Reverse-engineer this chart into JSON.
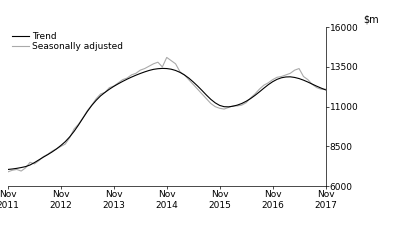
{
  "yticks": [
    6000,
    8500,
    11000,
    13500,
    16000
  ],
  "ylim": [
    6000,
    16000
  ],
  "xtick_labels": [
    "Nov\n2011",
    "Nov\n2012",
    "Nov\n2013",
    "Nov\n2014",
    "Nov\n2015",
    "Nov\n2016",
    "Nov\n2017"
  ],
  "xtick_positions": [
    0,
    12,
    24,
    36,
    48,
    60,
    72
  ],
  "trend": [
    7050,
    7080,
    7120,
    7170,
    7230,
    7330,
    7480,
    7650,
    7820,
    7980,
    8150,
    8340,
    8560,
    8800,
    9100,
    9450,
    9850,
    10280,
    10700,
    11080,
    11400,
    11680,
    11900,
    12100,
    12280,
    12440,
    12590,
    12730,
    12860,
    12980,
    13090,
    13190,
    13280,
    13350,
    13390,
    13410,
    13400,
    13360,
    13280,
    13160,
    13000,
    12800,
    12560,
    12300,
    12020,
    11730,
    11460,
    11240,
    11080,
    11000,
    10990,
    11030,
    11100,
    11200,
    11340,
    11510,
    11710,
    11930,
    12160,
    12380,
    12570,
    12720,
    12820,
    12870,
    12880,
    12840,
    12770,
    12670,
    12550,
    12420,
    12290,
    12170,
    12060
  ],
  "seasonal": [
    6900,
    7000,
    7050,
    6950,
    7150,
    7500,
    7400,
    7600,
    7850,
    8000,
    8200,
    8350,
    8500,
    8650,
    9050,
    9600,
    9900,
    10300,
    10750,
    11100,
    11500,
    11800,
    11900,
    12200,
    12300,
    12500,
    12700,
    12800,
    13000,
    13100,
    13300,
    13400,
    13550,
    13700,
    13800,
    13500,
    14100,
    13900,
    13700,
    13200,
    13000,
    12700,
    12400,
    12100,
    11800,
    11500,
    11200,
    11000,
    10900,
    10850,
    10950,
    11050,
    11050,
    11100,
    11250,
    11550,
    11800,
    12100,
    12350,
    12500,
    12700,
    12850,
    12900,
    13000,
    13100,
    13300,
    13400,
    12900,
    12700,
    12400,
    12200,
    12100,
    12100
  ],
  "trend_color": "#000000",
  "seasonal_color": "#aaaaaa",
  "trend_linewidth": 0.8,
  "seasonal_linewidth": 0.8,
  "background_color": "#ffffff",
  "legend_fontsize": 6.5,
  "tick_fontsize": 6.5,
  "ylabel_fontsize": 7
}
